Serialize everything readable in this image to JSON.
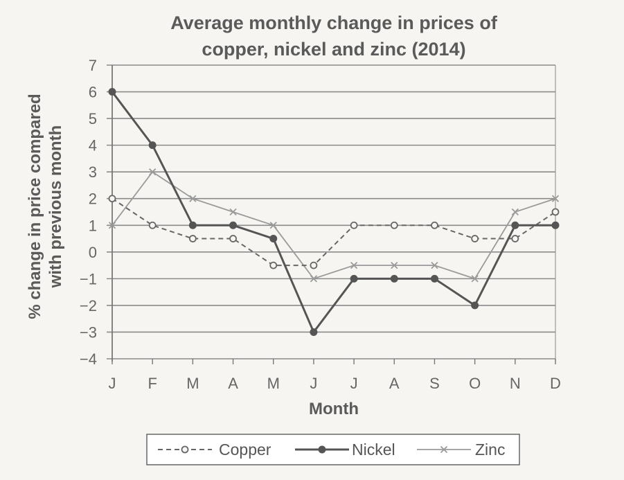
{
  "chart_data": {
    "type": "line",
    "title_lines": [
      "Average monthly change in prices of",
      "copper, nickel and zinc (2014)"
    ],
    "xlabel": "Month",
    "ylabel_lines": [
      "% change in price compared",
      "with previous month"
    ],
    "categories": [
      "J",
      "F",
      "M",
      "A",
      "M",
      "J",
      "J",
      "A",
      "S",
      "O",
      "N",
      "D"
    ],
    "ylim": [
      -4,
      7
    ],
    "yticks": [
      "7",
      "6",
      "5",
      "4",
      "3",
      "2",
      "1",
      "0",
      "−1",
      "−2",
      "−3",
      "−4"
    ],
    "grid": true,
    "legend_position": "bottom",
    "series": [
      {
        "name": "Copper",
        "style": "dashed",
        "marker": "open-circle",
        "color": "#666666",
        "values": [
          2,
          1,
          0.5,
          0.5,
          -0.5,
          -0.5,
          1,
          1,
          1,
          0.5,
          0.5,
          1.5
        ]
      },
      {
        "name": "Nickel",
        "style": "solid-bold",
        "marker": "filled-circle",
        "color": "#555555",
        "values": [
          6,
          4,
          1,
          1,
          0.5,
          -3,
          -1,
          -1,
          -1,
          -2,
          1,
          1
        ]
      },
      {
        "name": "Zinc",
        "style": "solid-light",
        "marker": "x",
        "color": "#9a9a9a",
        "values": [
          1,
          3,
          2,
          1.5,
          1,
          -1,
          -0.5,
          -0.5,
          -0.5,
          -1,
          1.5,
          2
        ]
      }
    ]
  }
}
